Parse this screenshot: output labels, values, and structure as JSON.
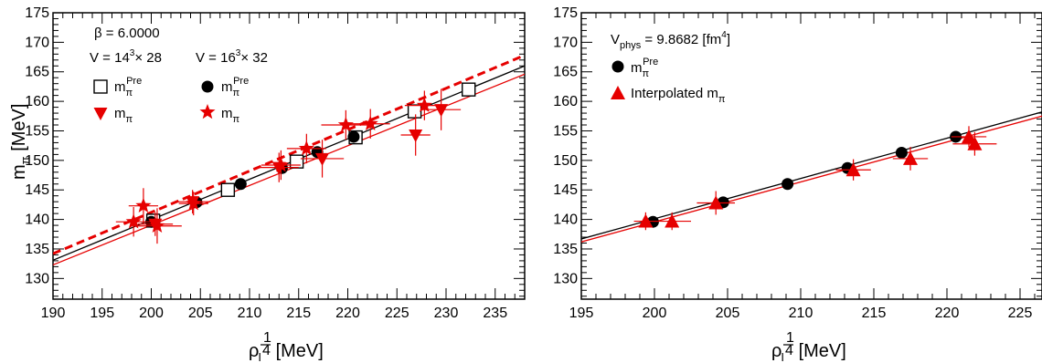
{
  "chart_data": [
    {
      "type": "scatter",
      "xlabel": "ρ_I^(1/4) [MeV]",
      "ylabel": "m_π [MeV]",
      "xlim": [
        190,
        238
      ],
      "ylim": [
        126.5,
        175
      ],
      "xticks": [
        190,
        195,
        200,
        205,
        210,
        215,
        220,
        225,
        230,
        235
      ],
      "yticks": [
        130,
        135,
        140,
        145,
        150,
        155,
        160,
        165,
        170,
        175
      ],
      "annotations": [
        {
          "id": "beta",
          "text": "β = 6.0000"
        },
        {
          "id": "vol14",
          "text": "V = 14³× 28"
        },
        {
          "id": "vol16",
          "text": "V = 16³× 32"
        }
      ],
      "legend": [
        {
          "id": "mpre14",
          "text": "mπPre",
          "marker": "open-square"
        },
        {
          "id": "mpi14",
          "text": "mπ",
          "marker": "down-triangle"
        },
        {
          "id": "mpre16",
          "text": "mπPre",
          "marker": "circle"
        },
        {
          "id": "mpi16",
          "text": "mπ",
          "marker": "star"
        }
      ],
      "series": [
        {
          "name": "mπPre",
          "marker": "open-square",
          "color": "#000000",
          "points": [
            [
              200.2,
              139.8
            ],
            [
              207.8,
              145.0
            ],
            [
              214.8,
              149.8
            ],
            [
              220.8,
              153.9
            ],
            [
              226.8,
              158.3
            ],
            [
              232.3,
              162.0
            ]
          ]
        },
        {
          "name": "mπPre",
          "marker": "circle",
          "color": "#000000",
          "points": [
            [
              200.0,
              139.6
            ],
            [
              204.6,
              142.9
            ],
            [
              209.1,
              146.0
            ],
            [
              213.3,
              148.7
            ],
            [
              216.9,
              151.4
            ],
            [
              220.6,
              154.0
            ]
          ]
        },
        {
          "name": "mπ",
          "marker": "down-triangle",
          "color": "#e60000",
          "points": [
            {
              "x": 200.4,
              "y": 139.2,
              "xerr": 1.8,
              "yerr": 2.0
            },
            {
              "x": 204.2,
              "y": 143.0,
              "xerr": 1.8,
              "yerr": 2.0
            },
            {
              "x": 213.0,
              "y": 148.8,
              "xerr": 2.0,
              "yerr": 2.5
            },
            {
              "x": 217.4,
              "y": 150.3,
              "xerr": 2.2,
              "yerr": 3.2
            },
            {
              "x": 226.9,
              "y": 154.3,
              "xerr": 1.5,
              "yerr": 3.5
            },
            {
              "x": 229.5,
              "y": 158.6,
              "xerr": 2.0,
              "yerr": 3.5
            }
          ]
        },
        {
          "name": "mπ",
          "marker": "star",
          "color": "#e60000",
          "points": [
            {
              "x": 198.2,
              "y": 139.6,
              "xerr": 1.8,
              "yerr": 2.5
            },
            {
              "x": 199.2,
              "y": 142.3,
              "xerr": 1.5,
              "yerr": 3.0
            },
            {
              "x": 200.6,
              "y": 138.9,
              "xerr": 2.5,
              "yerr": 3.0
            },
            {
              "x": 204.3,
              "y": 142.7,
              "xerr": 1.5,
              "yerr": 2.0
            },
            {
              "x": 213.2,
              "y": 149.2,
              "xerr": 2.0,
              "yerr": 2.5
            },
            {
              "x": 215.8,
              "y": 152.0,
              "xerr": 2.0,
              "yerr": 2.5
            },
            {
              "x": 219.8,
              "y": 156.0,
              "xerr": 2.5,
              "yerr": 2.5
            },
            {
              "x": 222.3,
              "y": 156.2,
              "xerr": 2.0,
              "yerr": 2.5
            },
            {
              "x": 227.8,
              "y": 159.3,
              "xerr": 2.0,
              "yerr": 2.5
            }
          ]
        }
      ],
      "lines": [
        {
          "id": "black-fit",
          "color": "#000000",
          "dash": false,
          "points": [
            [
              190,
              133.1
            ],
            [
              238,
              166.0
            ]
          ]
        },
        {
          "id": "red-fit",
          "color": "#e60000",
          "dash": false,
          "points": [
            [
              190,
              132.3
            ],
            [
              238,
              164.6
            ]
          ]
        },
        {
          "id": "red-dashed-fit",
          "color": "#e60000",
          "dash": true,
          "points": [
            [
              190,
              134.2
            ],
            [
              238,
              167.8
            ]
          ]
        }
      ]
    },
    {
      "type": "scatter",
      "xlabel": "ρ_I^(1/4) [MeV]",
      "xlim": [
        195,
        226.5
      ],
      "ylim": [
        126.5,
        175
      ],
      "xticks": [
        195,
        200,
        205,
        210,
        215,
        220,
        225
      ],
      "yticks": [
        130,
        135,
        140,
        145,
        150,
        155,
        160,
        165,
        170,
        175
      ],
      "annotations": [
        {
          "id": "vphys",
          "text": "Vphys = 9.8682 [fm⁴]"
        }
      ],
      "legend": [
        {
          "id": "mpre",
          "text": "mπPre",
          "marker": "circle"
        },
        {
          "id": "interp",
          "text": "Interpolated mπ",
          "marker": "up-triangle"
        }
      ],
      "series": [
        {
          "name": "mπPre",
          "marker": "circle",
          "color": "#000000",
          "points": [
            [
              199.9,
              139.6
            ],
            [
              204.7,
              142.9
            ],
            [
              209.1,
              146.0
            ],
            [
              213.2,
              148.7
            ],
            [
              216.9,
              151.3
            ],
            [
              220.6,
              154.0
            ]
          ]
        },
        {
          "name": "Interpolated mπ",
          "marker": "up-triangle",
          "color": "#e60000",
          "points": [
            {
              "x": 199.4,
              "y": 139.7,
              "xerr": 0.8,
              "yerr": 1.5
            },
            {
              "x": 201.2,
              "y": 139.7,
              "xerr": 1.3,
              "yerr": 1.5
            },
            {
              "x": 204.2,
              "y": 142.8,
              "xerr": 1.3,
              "yerr": 2.0
            },
            {
              "x": 213.6,
              "y": 148.4,
              "xerr": 1.2,
              "yerr": 1.8
            },
            {
              "x": 217.5,
              "y": 150.3,
              "xerr": 1.2,
              "yerr": 2.0
            },
            {
              "x": 221.5,
              "y": 154.0,
              "xerr": 1.2,
              "yerr": 1.8
            },
            {
              "x": 221.9,
              "y": 152.8,
              "xerr": 1.5,
              "yerr": 2.0
            }
          ]
        }
      ],
      "lines": [
        {
          "id": "black-fit",
          "color": "#000000",
          "dash": false,
          "points": [
            [
              195,
              136.7
            ],
            [
              226.5,
              158.2
            ]
          ]
        },
        {
          "id": "red-fit",
          "color": "#e60000",
          "dash": false,
          "points": [
            [
              195,
              136.2
            ],
            [
              226.5,
              157.5
            ]
          ]
        }
      ]
    }
  ]
}
